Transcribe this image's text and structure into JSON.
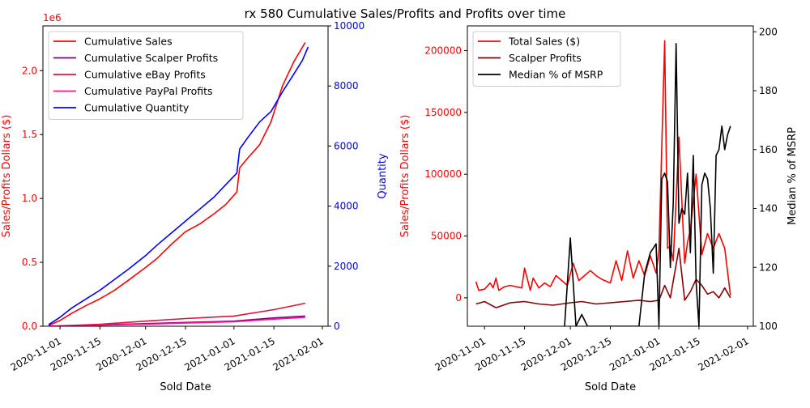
{
  "figure": {
    "title": "rx 580 Cumulative Sales/Profits and Profits over time"
  },
  "chart_data": [
    {
      "type": "line",
      "name": "left-panel",
      "xlabel": "Sold Date",
      "ylabel": "Sales/Profits Dollars ($)",
      "y2label": "Quantity",
      "y_offset_label": "1e6",
      "xlim": [
        "2020-10-26",
        "2021-02-03"
      ],
      "ylim": [
        0,
        2350000
      ],
      "y2lim": [
        0,
        10000
      ],
      "x_ticks": [
        "2020-11-01",
        "2020-11-15",
        "2020-12-01",
        "2020-12-15",
        "2021-01-01",
        "2021-01-15",
        "2021-02-01"
      ],
      "y_ticks": [
        {
          "value": 0,
          "label": "0.0"
        },
        {
          "value": 500000,
          "label": "0.5"
        },
        {
          "value": 1000000,
          "label": "1.0"
        },
        {
          "value": 1500000,
          "label": "1.5"
        },
        {
          "value": 2000000,
          "label": "2.0"
        }
      ],
      "y2_ticks": [
        {
          "value": 0,
          "label": "0"
        },
        {
          "value": 2000,
          "label": "2000"
        },
        {
          "value": 4000,
          "label": "4000"
        },
        {
          "value": 6000,
          "label": "6000"
        },
        {
          "value": 8000,
          "label": "8000"
        },
        {
          "value": 10000,
          "label": "10000"
        }
      ],
      "legend_position": "top-left",
      "legend": [
        {
          "name": "Cumulative Sales",
          "color": "#ff0000"
        },
        {
          "name": "Cumulative Scalper Profits",
          "color": "#800080"
        },
        {
          "name": "Cumulative eBay Profits",
          "color": "#dc143c"
        },
        {
          "name": "Cumulative PayPal Profits",
          "color": "#ff1493"
        },
        {
          "name": "Cumulative Quantity",
          "color": "#0000ff"
        }
      ],
      "series": [
        {
          "name": "Cumulative Sales",
          "axis": "left",
          "color": "#ff0000",
          "x": [
            "2020-10-28",
            "2020-11-01",
            "2020-11-05",
            "2020-11-10",
            "2020-11-15",
            "2020-11-20",
            "2020-11-25",
            "2020-12-01",
            "2020-12-05",
            "2020-12-10",
            "2020-12-15",
            "2020-12-20",
            "2020-12-25",
            "2020-12-29",
            "2021-01-02",
            "2021-01-03",
            "2021-01-06",
            "2021-01-10",
            "2021-01-14",
            "2021-01-18",
            "2021-01-22",
            "2021-01-26"
          ],
          "values": [
            5000,
            45000,
            100000,
            160000,
            215000,
            280000,
            360000,
            460000,
            530000,
            640000,
            740000,
            800000,
            880000,
            950000,
            1050000,
            1240000,
            1320000,
            1420000,
            1600000,
            1880000,
            2070000,
            2220000
          ]
        },
        {
          "name": "Cumulative Scalper Profits",
          "axis": "left",
          "color": "#800080",
          "x": [
            "2020-10-28",
            "2020-11-15",
            "2020-12-01",
            "2020-12-15",
            "2021-01-01",
            "2021-01-15",
            "2021-01-26"
          ],
          "values": [
            0,
            10000,
            20000,
            30000,
            40000,
            65000,
            80000
          ]
        },
        {
          "name": "Cumulative eBay Profits",
          "axis": "left",
          "color": "#dc143c",
          "x": [
            "2020-10-28",
            "2020-11-15",
            "2020-12-01",
            "2020-12-15",
            "2021-01-01",
            "2021-01-15",
            "2021-01-26"
          ],
          "values": [
            0,
            15000,
            40000,
            60000,
            80000,
            130000,
            180000
          ]
        },
        {
          "name": "Cumulative PayPal Profits",
          "axis": "left",
          "color": "#ff1493",
          "x": [
            "2020-10-28",
            "2020-11-15",
            "2020-12-01",
            "2020-12-15",
            "2021-01-01",
            "2021-01-15",
            "2021-01-26"
          ],
          "values": [
            0,
            8000,
            16000,
            25000,
            35000,
            55000,
            70000
          ]
        },
        {
          "name": "Cumulative Quantity",
          "axis": "right",
          "color": "#0000ff",
          "x": [
            "2020-10-28",
            "2020-11-01",
            "2020-11-05",
            "2020-11-10",
            "2020-11-15",
            "2020-11-20",
            "2020-11-25",
            "2020-12-01",
            "2020-12-05",
            "2020-12-10",
            "2020-12-15",
            "2020-12-20",
            "2020-12-25",
            "2020-12-29",
            "2021-01-02",
            "2021-01-03",
            "2021-01-06",
            "2021-01-10",
            "2021-01-14",
            "2021-01-18",
            "2021-01-22",
            "2021-01-25",
            "2021-01-27"
          ],
          "values": [
            50,
            300,
            600,
            900,
            1200,
            1550,
            1900,
            2350,
            2700,
            3100,
            3500,
            3900,
            4300,
            4700,
            5100,
            5900,
            6300,
            6800,
            7150,
            7800,
            8400,
            8850,
            9300
          ]
        }
      ]
    },
    {
      "type": "line",
      "name": "right-panel",
      "xlabel": "Sold Date",
      "ylabel": "Sales/Profits Dollars ($)",
      "y2label": "Median % of MSRP",
      "xlim": [
        "2020-10-26",
        "2021-02-03"
      ],
      "ylim": [
        -23000,
        220000
      ],
      "y2lim": [
        100,
        202
      ],
      "x_ticks": [
        "2020-11-01",
        "2020-11-15",
        "2020-12-01",
        "2020-12-15",
        "2021-01-01",
        "2021-01-15",
        "2021-02-01"
      ],
      "y_ticks": [
        {
          "value": 0,
          "label": "0"
        },
        {
          "value": 50000,
          "label": "50000"
        },
        {
          "value": 100000,
          "label": "100000"
        },
        {
          "value": 150000,
          "label": "150000"
        },
        {
          "value": 200000,
          "label": "200000"
        }
      ],
      "y2_ticks": [
        {
          "value": 100,
          "label": "100"
        },
        {
          "value": 120,
          "label": "120"
        },
        {
          "value": 140,
          "label": "140"
        },
        {
          "value": 160,
          "label": "160"
        },
        {
          "value": 180,
          "label": "180"
        },
        {
          "value": 200,
          "label": "200"
        }
      ],
      "legend_position": "top-left",
      "legend": [
        {
          "name": "Total Sales ($)",
          "color": "#ff0000"
        },
        {
          "name": "Scalper Profits",
          "color": "#8b0000"
        },
        {
          "name": "Median % of MSRP",
          "color": "#000000"
        }
      ],
      "series": [
        {
          "name": "Total Sales ($)",
          "axis": "left",
          "color": "#ff0000",
          "x": [
            "2020-10-29",
            "2020-10-30",
            "2020-11-01",
            "2020-11-03",
            "2020-11-04",
            "2020-11-05",
            "2020-11-06",
            "2020-11-08",
            "2020-11-10",
            "2020-11-12",
            "2020-11-14",
            "2020-11-15",
            "2020-11-17",
            "2020-11-18",
            "2020-11-20",
            "2020-11-22",
            "2020-11-24",
            "2020-11-26",
            "2020-11-28",
            "2020-11-30",
            "2020-12-02",
            "2020-12-04",
            "2020-12-06",
            "2020-12-08",
            "2020-12-10",
            "2020-12-12",
            "2020-12-15",
            "2020-12-17",
            "2020-12-19",
            "2020-12-21",
            "2020-12-23",
            "2020-12-25",
            "2020-12-27",
            "2020-12-29",
            "2020-12-31",
            "2021-01-01",
            "2021-01-03",
            "2021-01-04",
            "2021-01-05",
            "2021-01-06",
            "2021-01-08",
            "2021-01-10",
            "2021-01-11",
            "2021-01-12",
            "2021-01-14",
            "2021-01-16",
            "2021-01-18",
            "2021-01-20",
            "2021-01-22",
            "2021-01-24",
            "2021-01-26"
          ],
          "values": [
            13000,
            6000,
            7000,
            12000,
            8000,
            16000,
            6000,
            9000,
            10000,
            9000,
            8000,
            24000,
            6000,
            16000,
            8000,
            12000,
            9000,
            18000,
            14000,
            10000,
            28000,
            14000,
            18000,
            22000,
            18000,
            15000,
            12000,
            30000,
            14000,
            38000,
            16000,
            30000,
            18000,
            34000,
            20000,
            38000,
            208000,
            40000,
            42000,
            30000,
            130000,
            28000,
            45000,
            55000,
            100000,
            35000,
            52000,
            40000,
            52000,
            40000,
            2000
          ]
        },
        {
          "name": "Scalper Profits",
          "axis": "left",
          "color": "#8b0000",
          "x": [
            "2020-10-29",
            "2020-11-01",
            "2020-11-05",
            "2020-11-10",
            "2020-11-15",
            "2020-11-20",
            "2020-11-25",
            "2020-12-01",
            "2020-12-05",
            "2020-12-10",
            "2020-12-15",
            "2020-12-20",
            "2020-12-25",
            "2020-12-29",
            "2021-01-01",
            "2021-01-03",
            "2021-01-05",
            "2021-01-08",
            "2021-01-10",
            "2021-01-12",
            "2021-01-14",
            "2021-01-16",
            "2021-01-18",
            "2021-01-20",
            "2021-01-22",
            "2021-01-24",
            "2021-01-26"
          ],
          "values": [
            -5000,
            -3000,
            -8000,
            -4000,
            -3000,
            -5000,
            -6000,
            -4000,
            -3000,
            -5000,
            -4000,
            -3000,
            -2000,
            -3000,
            -2000,
            10000,
            0,
            40000,
            -2000,
            5000,
            15000,
            10000,
            3000,
            5000,
            0,
            8000,
            0
          ]
        },
        {
          "name": "Median % of MSRP",
          "axis": "right",
          "color": "#000000",
          "x": [
            "2020-11-29",
            "2020-12-01",
            "2020-12-03",
            "2020-12-05",
            "2020-12-07",
            "2020-12-20",
            "2020-12-22",
            "2020-12-25",
            "2020-12-27",
            "2020-12-29",
            "2020-12-31",
            "2021-01-01",
            "2021-01-02",
            "2021-01-03",
            "2021-01-04",
            "2021-01-05",
            "2021-01-06",
            "2021-01-07",
            "2021-01-08",
            "2021-01-09",
            "2021-01-10",
            "2021-01-11",
            "2021-01-12",
            "2021-01-13",
            "2021-01-14",
            "2021-01-15",
            "2021-01-16",
            "2021-01-17",
            "2021-01-18",
            "2021-01-19",
            "2021-01-20",
            "2021-01-21",
            "2021-01-22",
            "2021-01-23",
            "2021-01-24",
            "2021-01-25",
            "2021-01-26"
          ],
          "values": [
            100,
            130,
            100,
            104,
            100,
            100,
            100,
            100,
            118,
            125,
            128,
            100,
            150,
            152,
            149,
            120,
            142,
            196,
            135,
            140,
            138,
            152,
            125,
            158,
            115,
            100,
            148,
            152,
            150,
            140,
            118,
            158,
            160,
            168,
            160,
            165,
            168
          ]
        }
      ]
    }
  ]
}
